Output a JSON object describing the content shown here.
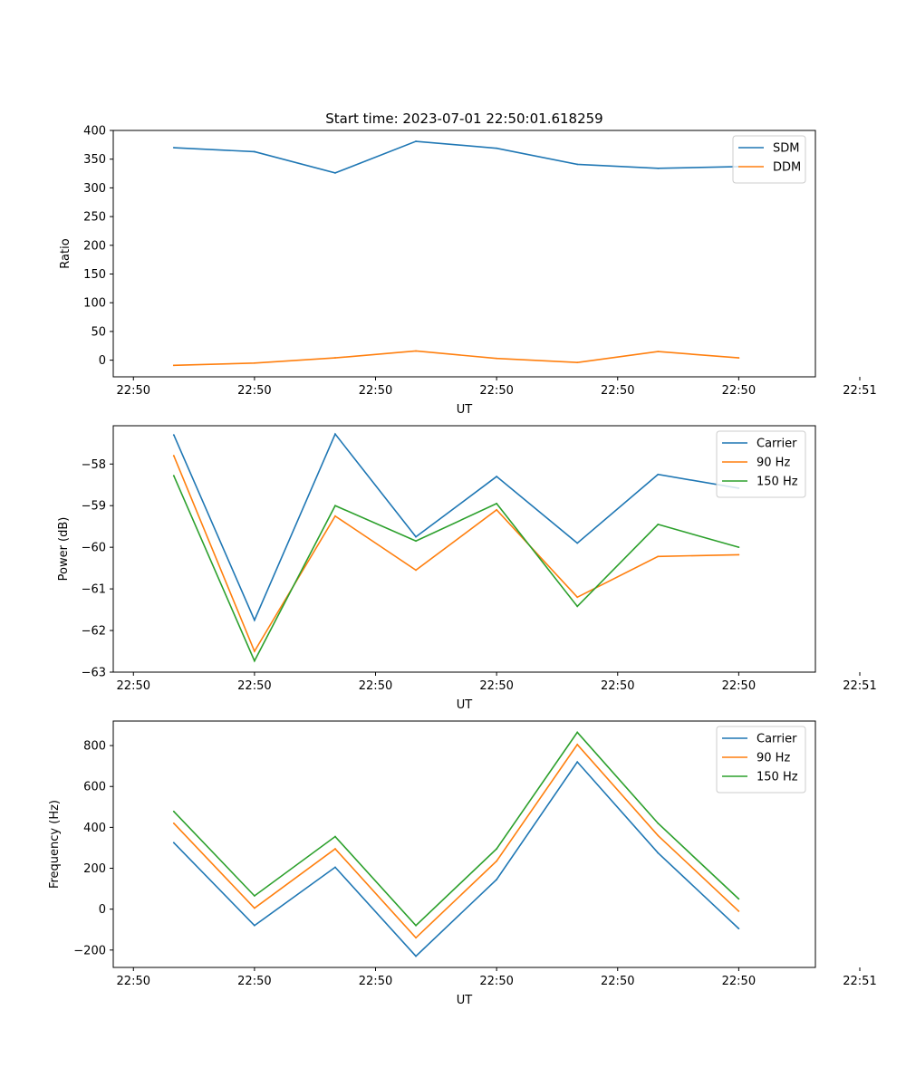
{
  "figure": {
    "title": "Start time: 2023-07-01 22:50:01.618259"
  },
  "chart_data": [
    {
      "type": "line",
      "title": "Start time: 2023-07-01 22:50:01.618259",
      "xlabel": "UT",
      "ylabel": "Ratio",
      "x": [
        1,
        2,
        3,
        4,
        5,
        6,
        7,
        8
      ],
      "xlim": [
        0.25,
        8.95
      ],
      "ylim": [
        -29,
        400
      ],
      "x_ticks": [
        0.5,
        2.0,
        3.5,
        5.0,
        6.5,
        8.0,
        9.5
      ],
      "x_tick_labels": [
        "22:50",
        "22:50",
        "22:50",
        "22:50",
        "22:50",
        "22:50",
        "22:51"
      ],
      "y_ticks": [
        0,
        50,
        100,
        150,
        200,
        250,
        300,
        350,
        400
      ],
      "y_tick_labels": [
        "0",
        "50",
        "100",
        "150",
        "200",
        "250",
        "300",
        "350",
        "400"
      ],
      "legend_position": "top-right",
      "series": [
        {
          "name": "SDM",
          "color": "#1f77b4",
          "values": [
            370,
            363,
            326,
            381,
            369,
            341,
            334,
            337
          ]
        },
        {
          "name": "DDM",
          "color": "#ff7f0e",
          "values": [
            -9,
            -5,
            4,
            16,
            3,
            -4,
            15,
            4
          ]
        }
      ]
    },
    {
      "type": "line",
      "title": "",
      "xlabel": "UT",
      "ylabel": "Power (dB)",
      "x": [
        1,
        2,
        3,
        4,
        5,
        6,
        7,
        8
      ],
      "xlim": [
        0.25,
        8.95
      ],
      "ylim": [
        -63.0,
        -57.08
      ],
      "x_ticks": [
        0.5,
        2.0,
        3.5,
        5.0,
        6.5,
        8.0,
        9.5
      ],
      "x_tick_labels": [
        "22:50",
        "22:50",
        "22:50",
        "22:50",
        "22:50",
        "22:50",
        "22:51"
      ],
      "y_ticks": [
        -58,
        -59,
        -60,
        -61,
        -62,
        -63
      ],
      "y_tick_labels": [
        "−58",
        "−59",
        "−60",
        "−61",
        "−62",
        "−63"
      ],
      "legend_position": "top-right",
      "series": [
        {
          "name": "Carrier",
          "color": "#1f77b4",
          "values": [
            -57.3,
            -61.75,
            -57.28,
            -59.75,
            -58.3,
            -59.9,
            -58.25,
            -58.58
          ]
        },
        {
          "name": "90 Hz",
          "color": "#ff7f0e",
          "values": [
            -57.8,
            -62.5,
            -59.25,
            -60.55,
            -59.1,
            -61.2,
            -60.22,
            -60.18
          ]
        },
        {
          "name": "150 Hz",
          "color": "#2ca02c",
          "values": [
            -58.28,
            -62.73,
            -59.0,
            -59.85,
            -58.95,
            -61.42,
            -59.45,
            -60.0
          ]
        }
      ]
    },
    {
      "type": "line",
      "title": "",
      "xlabel": "UT",
      "ylabel": "Frequency (Hz)",
      "x": [
        1,
        2,
        3,
        4,
        5,
        6,
        7,
        8
      ],
      "xlim": [
        0.25,
        8.95
      ],
      "ylim": [
        -285,
        920
      ],
      "x_ticks": [
        0.5,
        2.0,
        3.5,
        5.0,
        6.5,
        8.0,
        9.5
      ],
      "x_tick_labels": [
        "22:50",
        "22:50",
        "22:50",
        "22:50",
        "22:50",
        "22:50",
        "22:51"
      ],
      "y_ticks": [
        -200,
        0,
        200,
        400,
        600,
        800
      ],
      "y_tick_labels": [
        "−200",
        "0",
        "200",
        "400",
        "600",
        "800"
      ],
      "legend_position": "top-right",
      "series": [
        {
          "name": "Carrier",
          "color": "#1f77b4",
          "values": [
            325,
            -80,
            205,
            -230,
            145,
            720,
            275,
            -95
          ]
        },
        {
          "name": "90 Hz",
          "color": "#ff7f0e",
          "values": [
            420,
            5,
            295,
            -140,
            235,
            805,
            360,
            -10
          ]
        },
        {
          "name": "150 Hz",
          "color": "#2ca02c",
          "values": [
            478,
            65,
            355,
            -80,
            295,
            865,
            420,
            50
          ]
        }
      ]
    }
  ]
}
